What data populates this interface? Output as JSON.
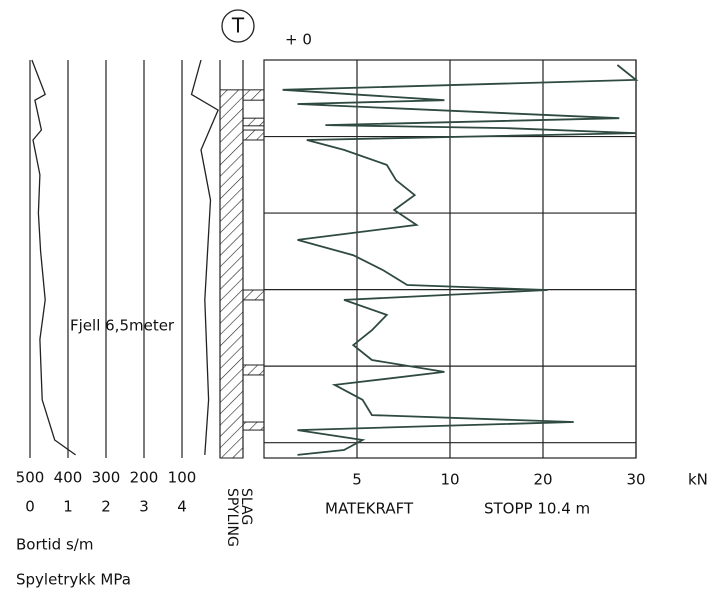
{
  "chart_data": {
    "type": "sounding_log",
    "top_symbol": "T",
    "top_label": "+ 0",
    "ylim": [
      0,
      10.4
    ],
    "yticks": [
      2,
      4,
      6,
      8,
      10
    ],
    "xlim": [
      0,
      30
    ],
    "xticks": [
      5,
      10,
      20,
      30
    ],
    "x_unit": "kN",
    "x_label": "MATEKRAFT",
    "stop_label": "STOPP 10.4 m",
    "rock_label": "Fjell 6,5meter",
    "bortid_lim": [
      500,
      0
    ],
    "bortid_ticks": [
      500,
      400,
      300,
      200,
      100
    ],
    "bortid_label": "Bortid s/m",
    "spyletrykk_lim": [
      0,
      5
    ],
    "spyletrykk_ticks": [
      0,
      1,
      2,
      3,
      4
    ],
    "spyletrykk_label": "Spyletrykk MPa",
    "spyling_label": "SPYLING",
    "slag_label": "SLAG",
    "color": "#2f4a40",
    "matekraft": {
      "depth": [
        0.13,
        0.52,
        0.78,
        1.05,
        1.15,
        1.52,
        1.7,
        1.78,
        1.91,
        2.09,
        2.35,
        2.74,
        3.14,
        3.53,
        3.92,
        4.31,
        4.7,
        5.1,
        5.49,
        5.88,
        6.01,
        6.27,
        6.66,
        7.06,
        7.45,
        7.84,
        8.15,
        8.49,
        8.88,
        9.28,
        9.46,
        9.67,
        9.93,
        10.19,
        10.32
      ],
      "values": [
        28,
        30,
        1,
        9.7,
        1.8,
        28.2,
        3.3,
        16,
        30,
        2.3,
        4.3,
        6.6,
        7.1,
        8.1,
        7.0,
        8.2,
        1.8,
        4.8,
        6.4,
        7.7,
        20.5,
        4.3,
        6.6,
        5.8,
        4.8,
        5.8,
        9.7,
        3.8,
        5.3,
        5.8,
        23.3,
        1.8,
        5.3,
        4.3,
        1.8
      ]
    },
    "spyletrykk": {
      "depth": [
        0,
        0.9,
        1.05,
        1.83,
        2.09,
        3.0,
        4.0,
        5.0,
        6.27,
        7.3,
        8.88,
        9.93,
        10.32
      ],
      "values": [
        0.05,
        0.4,
        0.13,
        0.3,
        0.08,
        0.26,
        0.22,
        0.28,
        0.4,
        0.26,
        0.32,
        0.65,
        1.2
      ]
    },
    "bortid": {
      "depth": [
        0,
        0.9,
        1.31,
        2.35,
        3.66,
        6.27,
        8.88,
        10.32
      ],
      "values": [
        50,
        75,
        5,
        50,
        25,
        40,
        30,
        40
      ]
    },
    "spyling_intervals": [
      [
        0.78,
        10.4
      ]
    ],
    "slag_intervals": [
      [
        0.78,
        1.05
      ],
      [
        1.52,
        1.72
      ],
      [
        1.83,
        2.09
      ],
      [
        6.01,
        6.27
      ],
      [
        7.97,
        8.23
      ],
      [
        9.46,
        9.67
      ]
    ]
  }
}
